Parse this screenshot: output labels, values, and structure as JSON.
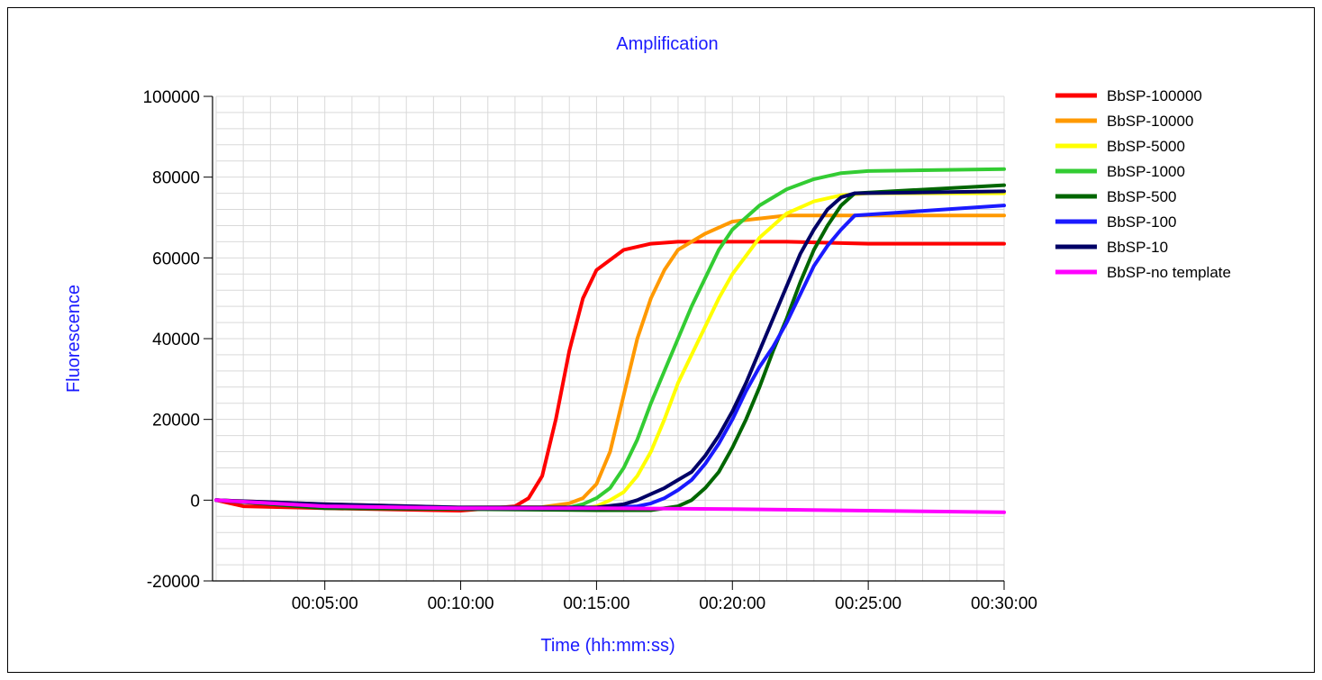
{
  "chart_data": {
    "type": "line",
    "title": "Amplification",
    "xlabel": "Time (hh:mm:ss)",
    "ylabel": "Fluorescence",
    "title_color": "#1a1aff",
    "xlim_seconds": [
      60,
      1800
    ],
    "ylim": [
      -20000,
      100000
    ],
    "y_ticks": [
      -20000,
      0,
      20000,
      40000,
      60000,
      80000,
      100000
    ],
    "y_tick_labels": [
      "-20000",
      "0",
      "20000",
      "40000",
      "60000",
      "80000",
      "100000"
    ],
    "x_ticks_seconds": [
      300,
      600,
      900,
      1200,
      1500,
      1800
    ],
    "x_tick_labels": [
      "00:05:00",
      "00:10:00",
      "00:15:00",
      "00:20:00",
      "00:25:00",
      "00:30:00"
    ],
    "grid": true,
    "legend_position": "top-right",
    "series": [
      {
        "name": "BbSP-100000",
        "color": "#ff0000",
        "points": [
          [
            60,
            0
          ],
          [
            120,
            -1500
          ],
          [
            300,
            -2000
          ],
          [
            540,
            -2500
          ],
          [
            600,
            -2600
          ],
          [
            690,
            -1800
          ],
          [
            720,
            -1500
          ],
          [
            750,
            500
          ],
          [
            780,
            6000
          ],
          [
            810,
            20000
          ],
          [
            840,
            37000
          ],
          [
            870,
            50000
          ],
          [
            900,
            57000
          ],
          [
            960,
            62000
          ],
          [
            1020,
            63500
          ],
          [
            1080,
            64000
          ],
          [
            1200,
            64000
          ],
          [
            1320,
            64000
          ],
          [
            1500,
            63500
          ],
          [
            1800,
            63500
          ]
        ]
      },
      {
        "name": "BbSP-10000",
        "color": "#ff9900",
        "points": [
          [
            60,
            0
          ],
          [
            300,
            -1000
          ],
          [
            600,
            -1800
          ],
          [
            780,
            -1700
          ],
          [
            840,
            -800
          ],
          [
            870,
            500
          ],
          [
            900,
            4000
          ],
          [
            930,
            12000
          ],
          [
            960,
            26000
          ],
          [
            990,
            40000
          ],
          [
            1020,
            50000
          ],
          [
            1050,
            57000
          ],
          [
            1080,
            62000
          ],
          [
            1140,
            66000
          ],
          [
            1200,
            69000
          ],
          [
            1320,
            70500
          ],
          [
            1500,
            70500
          ],
          [
            1800,
            70500
          ]
        ]
      },
      {
        "name": "BbSP-5000",
        "color": "#ffff00",
        "points": [
          [
            60,
            0
          ],
          [
            300,
            -1500
          ],
          [
            600,
            -2000
          ],
          [
            870,
            -2000
          ],
          [
            900,
            -1500
          ],
          [
            930,
            0
          ],
          [
            960,
            2000
          ],
          [
            990,
            6000
          ],
          [
            1020,
            12000
          ],
          [
            1050,
            20000
          ],
          [
            1080,
            29000
          ],
          [
            1110,
            36000
          ],
          [
            1140,
            43000
          ],
          [
            1170,
            50000
          ],
          [
            1200,
            56000
          ],
          [
            1260,
            65000
          ],
          [
            1320,
            71000
          ],
          [
            1380,
            74000
          ],
          [
            1440,
            75500
          ],
          [
            1500,
            76000
          ],
          [
            1800,
            76000
          ]
        ]
      },
      {
        "name": "BbSP-1000",
        "color": "#33cc33",
        "points": [
          [
            60,
            0
          ],
          [
            300,
            -1500
          ],
          [
            600,
            -2000
          ],
          [
            780,
            -2200
          ],
          [
            840,
            -1800
          ],
          [
            870,
            -1000
          ],
          [
            900,
            500
          ],
          [
            930,
            3000
          ],
          [
            960,
            8000
          ],
          [
            990,
            15000
          ],
          [
            1020,
            24000
          ],
          [
            1050,
            32000
          ],
          [
            1080,
            40000
          ],
          [
            1110,
            48000
          ],
          [
            1140,
            55000
          ],
          [
            1170,
            62000
          ],
          [
            1200,
            67000
          ],
          [
            1260,
            73000
          ],
          [
            1320,
            77000
          ],
          [
            1380,
            79500
          ],
          [
            1440,
            81000
          ],
          [
            1500,
            81500
          ],
          [
            1800,
            82000
          ]
        ]
      },
      {
        "name": "BbSP-500",
        "color": "#006600",
        "points": [
          [
            60,
            0
          ],
          [
            300,
            -2000
          ],
          [
            600,
            -2200
          ],
          [
            900,
            -2500
          ],
          [
            1020,
            -2500
          ],
          [
            1080,
            -1500
          ],
          [
            1110,
            0
          ],
          [
            1140,
            3000
          ],
          [
            1170,
            7000
          ],
          [
            1200,
            13000
          ],
          [
            1230,
            20000
          ],
          [
            1260,
            28000
          ],
          [
            1290,
            37000
          ],
          [
            1320,
            45000
          ],
          [
            1350,
            54000
          ],
          [
            1380,
            62000
          ],
          [
            1410,
            68000
          ],
          [
            1440,
            73000
          ],
          [
            1470,
            76000
          ],
          [
            1800,
            78000
          ]
        ]
      },
      {
        "name": "BbSP-100",
        "color": "#1a1aff",
        "points": [
          [
            60,
            0
          ],
          [
            300,
            -1500
          ],
          [
            600,
            -2000
          ],
          [
            900,
            -2000
          ],
          [
            990,
            -1500
          ],
          [
            1020,
            -800
          ],
          [
            1050,
            500
          ],
          [
            1080,
            2500
          ],
          [
            1110,
            5000
          ],
          [
            1140,
            9000
          ],
          [
            1170,
            14000
          ],
          [
            1200,
            20000
          ],
          [
            1230,
            27000
          ],
          [
            1260,
            33000
          ],
          [
            1290,
            38000
          ],
          [
            1320,
            44000
          ],
          [
            1350,
            51000
          ],
          [
            1380,
            58000
          ],
          [
            1410,
            63000
          ],
          [
            1440,
            67000
          ],
          [
            1470,
            70500
          ],
          [
            1800,
            73000
          ]
        ]
      },
      {
        "name": "BbSP-10",
        "color": "#000066",
        "points": [
          [
            60,
            0
          ],
          [
            300,
            -1000
          ],
          [
            600,
            -1800
          ],
          [
            900,
            -1800
          ],
          [
            960,
            -1000
          ],
          [
            990,
            0
          ],
          [
            1020,
            1500
          ],
          [
            1050,
            3000
          ],
          [
            1080,
            5000
          ],
          [
            1110,
            7000
          ],
          [
            1140,
            11000
          ],
          [
            1170,
            16000
          ],
          [
            1200,
            22000
          ],
          [
            1230,
            29000
          ],
          [
            1260,
            37000
          ],
          [
            1290,
            45000
          ],
          [
            1320,
            53000
          ],
          [
            1350,
            61000
          ],
          [
            1380,
            67000
          ],
          [
            1410,
            72000
          ],
          [
            1440,
            75000
          ],
          [
            1470,
            76000
          ],
          [
            1800,
            76500
          ]
        ]
      },
      {
        "name": "BbSP-no template",
        "color": "#ff00ff",
        "points": [
          [
            60,
            0
          ],
          [
            300,
            -1500
          ],
          [
            600,
            -2000
          ],
          [
            900,
            -2000
          ],
          [
            1200,
            -2200
          ],
          [
            1500,
            -2600
          ],
          [
            1800,
            -3000
          ]
        ]
      }
    ]
  }
}
